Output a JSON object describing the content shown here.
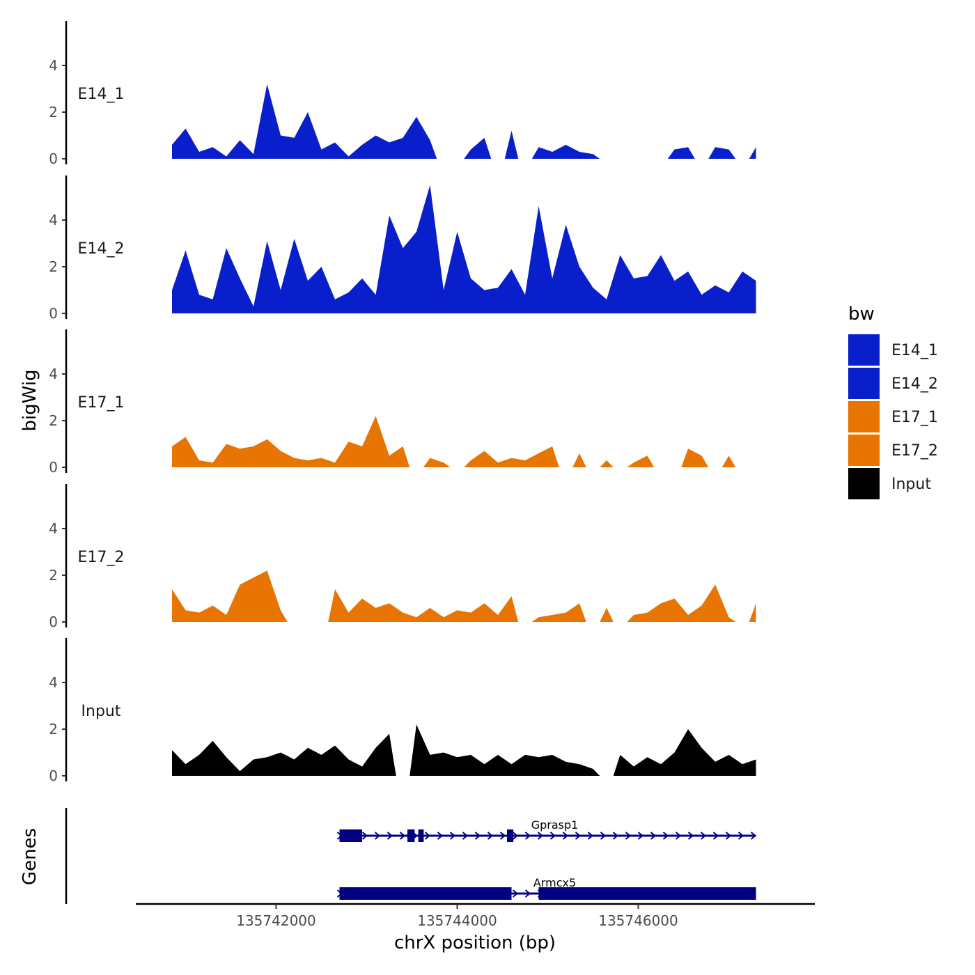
{
  "chart_data": {
    "type": "area",
    "ylabel": "bigWig",
    "xlabel": "chrX position (bp)",
    "xlim": [
      135740450,
      135747950
    ],
    "ylim": [
      0,
      6
    ],
    "yticks": [
      0,
      2,
      4
    ],
    "xticks": [
      135742000,
      135744000,
      135746000
    ],
    "xtick_labels": [
      "135742000",
      "135744000",
      "135746000"
    ],
    "legend": {
      "title": "bw",
      "position": "right",
      "entries": [
        {
          "label": "E14_1",
          "color": "#0a1fcc"
        },
        {
          "label": "E14_2",
          "color": "#0a1fcc"
        },
        {
          "label": "E17_1",
          "color": "#e87502"
        },
        {
          "label": "E17_2",
          "color": "#e87502"
        },
        {
          "label": "Input",
          "color": "#000000"
        }
      ]
    },
    "x": [
      135740850,
      135741000,
      135741150,
      135741300,
      135741450,
      135741600,
      135741750,
      135741900,
      135742050,
      135742200,
      135742350,
      135742500,
      135742650,
      135742800,
      135742950,
      135743100,
      135743250,
      135743400,
      135743550,
      135743700,
      135743850,
      135744000,
      135744150,
      135744300,
      135744450,
      135744600,
      135744750,
      135744900,
      135745050,
      135745200,
      135745350,
      135745500,
      135745650,
      135745800,
      135745950,
      135746100,
      135746250,
      135746400,
      135746550,
      135746700,
      135746850,
      135747000,
      135747150,
      135747300
    ],
    "series": [
      {
        "name": "E14_1",
        "color": "#0a1fcc",
        "values": [
          0.6,
          1.3,
          0.3,
          0.5,
          0.1,
          0.8,
          0.2,
          3.2,
          1.0,
          0.9,
          2.0,
          0.4,
          0.7,
          0.1,
          0.6,
          1.0,
          0.7,
          0.9,
          1.8,
          0.8,
          0.0,
          0.0,
          0.4,
          0.9,
          0.0,
          1.2,
          0.0,
          0.5,
          0.3,
          0.6,
          0.3,
          0.2,
          0.0,
          0.0,
          0.0,
          0.0,
          0.0,
          0.4,
          0.5,
          0.0,
          0.5,
          0.4,
          0.0,
          0.5
        ]
      },
      {
        "name": "E14_2",
        "color": "#0a1fcc",
        "values": [
          1.0,
          2.7,
          0.8,
          0.6,
          2.8,
          1.5,
          0.3,
          3.1,
          1.0,
          3.2,
          1.4,
          2.0,
          0.6,
          0.9,
          1.5,
          0.8,
          4.2,
          2.8,
          3.5,
          5.5,
          1.0,
          3.5,
          1.5,
          1.0,
          1.1,
          1.9,
          0.8,
          4.6,
          1.5,
          3.8,
          2.0,
          1.1,
          0.6,
          2.5,
          1.5,
          1.6,
          2.5,
          1.4,
          1.8,
          0.8,
          1.2,
          0.9,
          1.8,
          1.4
        ]
      },
      {
        "name": "E17_1",
        "color": "#e87502",
        "values": [
          0.9,
          1.3,
          0.3,
          0.2,
          1.0,
          0.8,
          0.9,
          1.2,
          0.7,
          0.4,
          0.3,
          0.4,
          0.2,
          1.1,
          0.9,
          2.2,
          0.5,
          0.9,
          0.0,
          0.4,
          0.2,
          0.0,
          0.3,
          0.7,
          0.2,
          0.4,
          0.3,
          0.6,
          0.9,
          0.0,
          0.6,
          0.0,
          0.3,
          0.0,
          0.2,
          0.5,
          0.0,
          0.0,
          0.8,
          0.5,
          0.0,
          0.5,
          0.0,
          0.0
        ]
      },
      {
        "name": "E17_2",
        "color": "#e87502",
        "values": [
          1.4,
          0.5,
          0.4,
          0.7,
          0.3,
          1.6,
          1.9,
          2.2,
          0.5,
          0.0,
          0.0,
          0.0,
          1.4,
          0.4,
          1.0,
          0.6,
          0.8,
          0.4,
          0.2,
          0.6,
          0.2,
          0.5,
          0.4,
          0.8,
          0.3,
          1.1,
          0.0,
          0.2,
          0.3,
          0.4,
          0.8,
          0.0,
          0.6,
          0.0,
          0.3,
          0.4,
          0.8,
          1.0,
          0.3,
          0.7,
          1.6,
          0.2,
          0.0,
          0.8
        ]
      },
      {
        "name": "Input",
        "color": "#000000",
        "values": [
          1.1,
          0.5,
          0.9,
          1.5,
          0.8,
          0.2,
          0.7,
          0.8,
          1.0,
          0.7,
          1.2,
          0.9,
          1.3,
          0.7,
          0.4,
          1.2,
          1.8,
          0.0,
          2.2,
          0.9,
          1.0,
          0.8,
          0.9,
          0.5,
          0.9,
          0.5,
          0.9,
          0.8,
          0.9,
          0.6,
          0.5,
          0.3,
          0.0,
          0.9,
          0.4,
          0.8,
          0.5,
          1.0,
          2.0,
          1.2,
          0.6,
          0.9,
          0.5,
          0.7
        ]
      }
    ],
    "genes_track": {
      "title": "Genes",
      "strand": "+",
      "color": "#000080",
      "genes": [
        {
          "name": "Gprasp1",
          "start": 135742700,
          "end": 135747300,
          "exons": [
            [
              135742700,
              135742950
            ],
            [
              135743450,
              135743530
            ],
            [
              135743570,
              135743630
            ],
            [
              135744550,
              135744620
            ]
          ]
        },
        {
          "name": "Armcx5",
          "start": 135742700,
          "end": 135747300,
          "exons": [
            [
              135742700,
              135744600
            ],
            [
              135744900,
              135747300
            ]
          ]
        }
      ]
    }
  }
}
